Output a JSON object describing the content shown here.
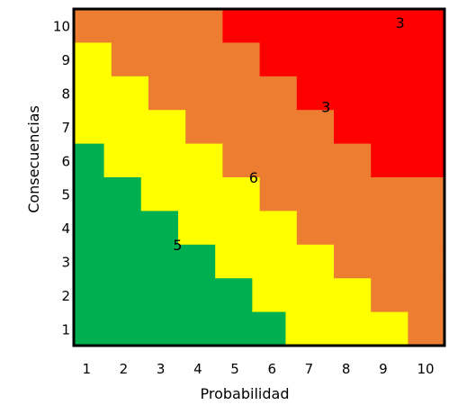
{
  "chart_data": {
    "type": "heatmap",
    "title": "",
    "xlabel": "Probabilidad",
    "ylabel": "Consecuencias",
    "x_ticks": [
      "1",
      "2",
      "3",
      "4",
      "5",
      "6",
      "7",
      "8",
      "9",
      "10"
    ],
    "y_ticks": [
      "1",
      "2",
      "3",
      "4",
      "5",
      "6",
      "7",
      "8",
      "9",
      "10"
    ],
    "zones": [
      {
        "name": "green",
        "color": "#00B050",
        "label": "5",
        "label_at": [
          2.8,
          3.0
        ],
        "x_end": [
          5.7,
          4.8,
          3.8,
          2.8,
          1.8,
          0.8
        ]
      },
      {
        "name": "yellow",
        "color": "#FFFF00",
        "label": "6",
        "label_at": [
          4.85,
          5.0
        ],
        "x_end": [
          9.0,
          8.0,
          7.0,
          6.0,
          5.0,
          4.0,
          3.0,
          2.0,
          1.0
        ]
      },
      {
        "name": "orange",
        "color": "#ED7D31",
        "label": "3",
        "label_at": [
          6.8,
          7.1
        ],
        "x_end": [
          10,
          10,
          10,
          10,
          10,
          8.0,
          7.0,
          6.0,
          5.0,
          4.0
        ]
      },
      {
        "name": "red",
        "color": "#FF0000",
        "label": "3",
        "label_at": [
          8.8,
          9.6
        ],
        "x_end": []
      }
    ]
  }
}
